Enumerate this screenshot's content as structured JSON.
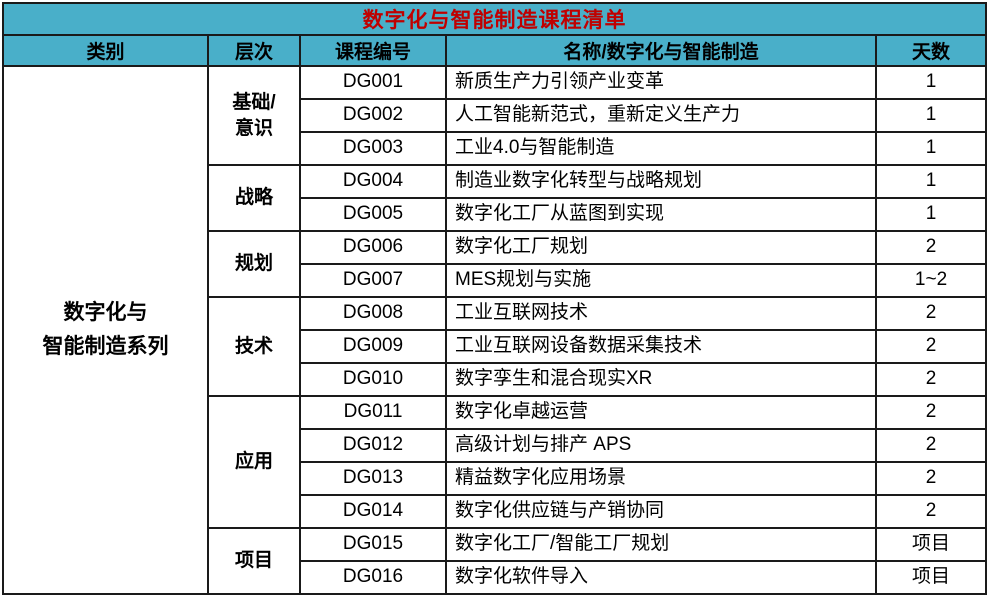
{
  "title": "数字化与智能制造课程清单",
  "columns": [
    "类别",
    "层次",
    "课程编号",
    "名称/数字化与智能制造",
    "天数"
  ],
  "category": {
    "text": "数字化与\n智能制造系列"
  },
  "levels": [
    {
      "label": "基础/\n意识",
      "rowspan": 3
    },
    {
      "label": "战略",
      "rowspan": 2
    },
    {
      "label": "规划",
      "rowspan": 2
    },
    {
      "label": "技术",
      "rowspan": 3
    },
    {
      "label": "应用",
      "rowspan": 4
    },
    {
      "label": "项目",
      "rowspan": 2
    }
  ],
  "courses": [
    {
      "code": "DG001",
      "name": "新质生产力引领产业变革",
      "days": "1"
    },
    {
      "code": "DG002",
      "name": "人工智能新范式，重新定义生产力",
      "days": "1"
    },
    {
      "code": "DG003",
      "name": "工业4.0与智能制造",
      "days": "1"
    },
    {
      "code": "DG004",
      "name": "制造业数字化转型与战略规划",
      "days": "1"
    },
    {
      "code": "DG005",
      "name": "数字化工厂从蓝图到实现",
      "days": "1"
    },
    {
      "code": "DG006",
      "name": "数字化工厂规划",
      "days": "2"
    },
    {
      "code": "DG007",
      "name": "MES规划与实施",
      "days": "1~2"
    },
    {
      "code": "DG008",
      "name": "工业互联网技术",
      "days": "2"
    },
    {
      "code": "DG009",
      "name": "工业互联网设备数据采集技术",
      "days": "2"
    },
    {
      "code": "DG010",
      "name": "数字孪生和混合现实XR",
      "days": "2"
    },
    {
      "code": "DG011",
      "name": "数字化卓越运营",
      "days": "2"
    },
    {
      "code": "DG012",
      "name": "高级计划与排产 APS",
      "days": "2"
    },
    {
      "code": "DG013",
      "name": "精益数字化应用场景",
      "days": "2"
    },
    {
      "code": "DG014",
      "name": "数字化供应链与产销协同",
      "days": "2"
    },
    {
      "code": "DG015",
      "name": "数字化工厂/智能工厂规划",
      "days": "项目"
    },
    {
      "code": "DG016",
      "name": "数字化软件导入",
      "days": "项目"
    }
  ],
  "colors": {
    "header_bg": "#49AFC9",
    "title_text": "#C00000",
    "border": "#1a1a1a",
    "body_text": "#000000",
    "body_bg": "#FFFFFF"
  }
}
